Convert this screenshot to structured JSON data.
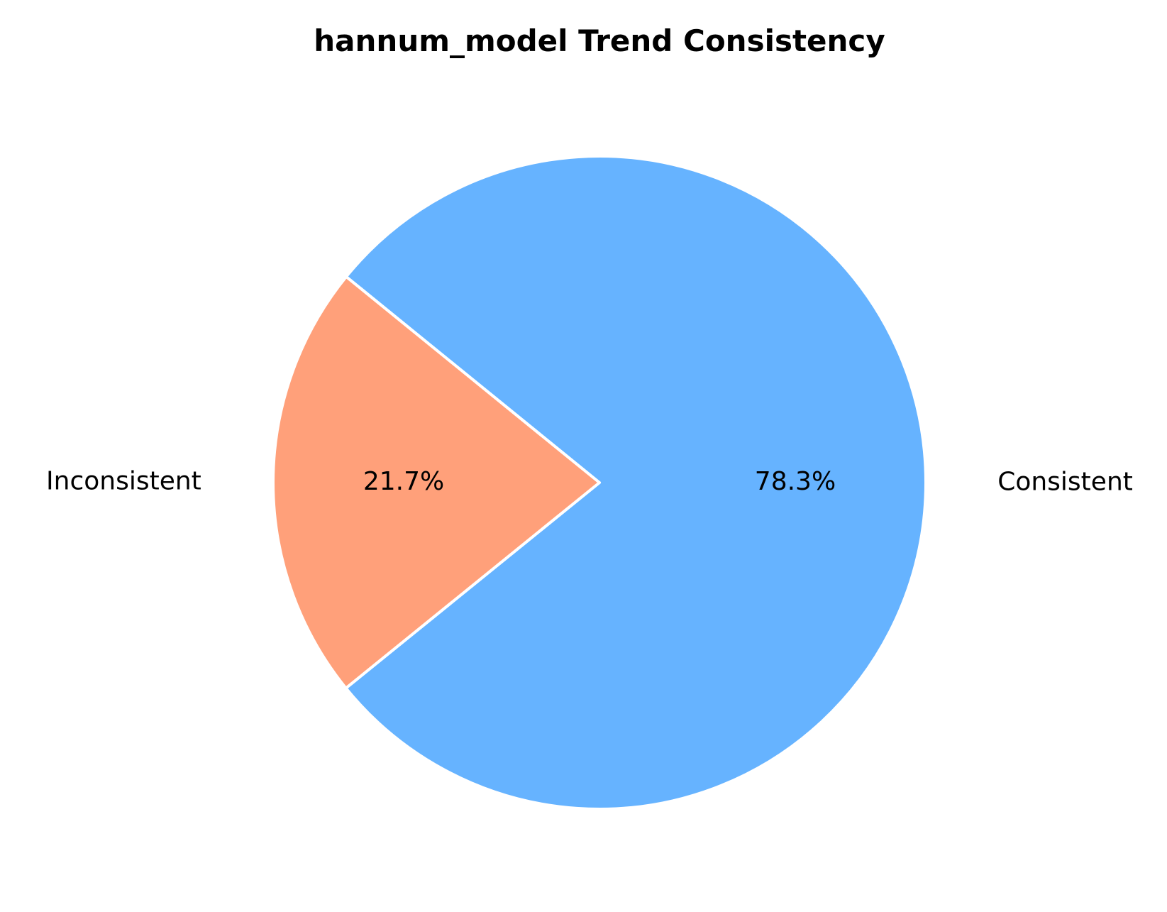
{
  "chart_data": {
    "type": "pie",
    "title": "hannum_model Trend Consistency",
    "slices": [
      {
        "label": "Consistent",
        "value": 78.3,
        "pct_label": "78.3%",
        "color": "#66b3ff"
      },
      {
        "label": "Inconsistent",
        "value": 21.7,
        "pct_label": "21.7%",
        "color": "#ffa07a"
      }
    ],
    "edge_color": "#ffffff"
  }
}
